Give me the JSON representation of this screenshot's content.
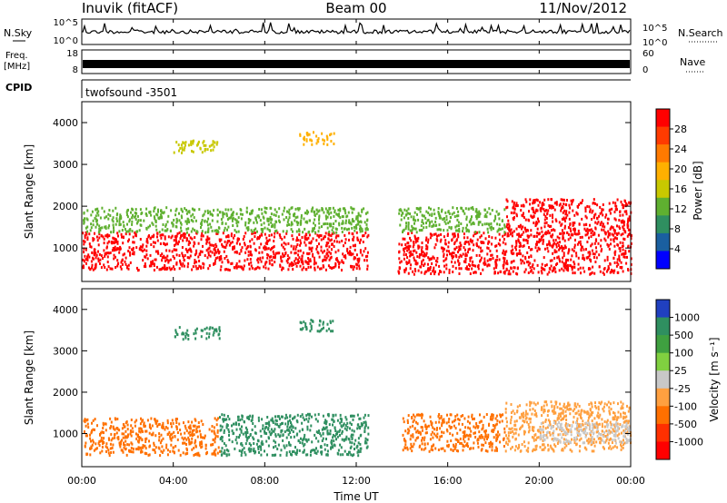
{
  "header": {
    "station": "Inuvik (fitACF)",
    "beam": "Beam 00",
    "date": "11/Nov/2012"
  },
  "sky_panel": {
    "left_label": "N.Sky",
    "right_label": "N.Search",
    "left_ticks": [
      "10^5",
      "10^0"
    ],
    "right_ticks": [
      "10^5",
      "10^0"
    ]
  },
  "freq_panel": {
    "left_label_1": "Freq.",
    "left_label_2": "[MHz]",
    "left_ticks": [
      "18",
      "8"
    ],
    "right_label": "Nave",
    "right_ticks": [
      "60",
      "0"
    ]
  },
  "cpid_panel": {
    "label": "CPID",
    "program": "twofsound -3501"
  },
  "range_axis": {
    "label": "Slant Range [km]",
    "ticks": [
      "4000",
      "3000",
      "2000",
      "1000"
    ],
    "tick_values": [
      4000,
      3000,
      2000,
      1000
    ],
    "range": [
      200,
      4500
    ]
  },
  "time_axis": {
    "label": "Time UT",
    "ticks": [
      "00:00",
      "04:00",
      "08:00",
      "12:00",
      "16:00",
      "20:00",
      "00:00"
    ],
    "range_hours": [
      0,
      24
    ]
  },
  "power_scale": {
    "label": "Power [dB]",
    "ticks": [
      "28",
      "24",
      "20",
      "16",
      "12",
      "8",
      "4"
    ],
    "colors": [
      "#ff0000",
      "#ff3b00",
      "#ff7a00",
      "#ffb000",
      "#c8c800",
      "#5fb030",
      "#2f8f60",
      "#1a5fa0",
      "#0000ff"
    ]
  },
  "velocity_scale": {
    "label": "Velocity [m s⁻¹]",
    "ticks": [
      "1000",
      "500",
      "100",
      "25",
      "-25",
      "-100",
      "-500",
      "-1000"
    ],
    "colors": [
      "#2040c0",
      "#2f8f60",
      "#3fa040",
      "#80d040",
      "#c8c8c8",
      "#ffa040",
      "#ff7000",
      "#ff3000",
      "#ff0000"
    ]
  },
  "chart_data": {
    "type": "heatmap",
    "x": "Time UT (hours)",
    "y": "Slant Range (km)",
    "power_layers": [
      {
        "start": 0,
        "end": 12.5,
        "low": 500,
        "high": 1400,
        "color": "#ff0000"
      },
      {
        "start": 0,
        "end": 12.5,
        "low": 1400,
        "high": 2000,
        "color": "#5fb030"
      },
      {
        "start": 4.0,
        "end": 6.0,
        "low": 3300,
        "high": 3600,
        "color": "#c8c800"
      },
      {
        "start": 9.5,
        "end": 11.0,
        "low": 3500,
        "high": 3800,
        "color": "#ffb000"
      },
      {
        "start": 13.8,
        "end": 24,
        "low": 400,
        "high": 1400,
        "color": "#ff0000"
      },
      {
        "start": 18.5,
        "end": 24,
        "low": 1400,
        "high": 2200,
        "color": "#ff0000"
      },
      {
        "start": 13.8,
        "end": 18.5,
        "low": 1400,
        "high": 2000,
        "color": "#5fb030"
      }
    ],
    "velocity_layers": [
      {
        "start": 0,
        "end": 6.0,
        "low": 500,
        "high": 1400,
        "color": "#ff7000"
      },
      {
        "start": 6.0,
        "end": 12.5,
        "low": 500,
        "high": 1500,
        "color": "#2f8f60"
      },
      {
        "start": 4.0,
        "end": 6.0,
        "low": 3300,
        "high": 3600,
        "color": "#2f8f60"
      },
      {
        "start": 9.5,
        "end": 11.0,
        "low": 3500,
        "high": 3800,
        "color": "#2f8f60"
      },
      {
        "start": 14.0,
        "end": 18.5,
        "low": 600,
        "high": 1500,
        "color": "#ff7000"
      },
      {
        "start": 18.5,
        "end": 24,
        "low": 600,
        "high": 1800,
        "color": "#ffa040"
      },
      {
        "start": 20.0,
        "end": 24,
        "low": 800,
        "high": 1300,
        "color": "#c8c8c8"
      }
    ]
  }
}
